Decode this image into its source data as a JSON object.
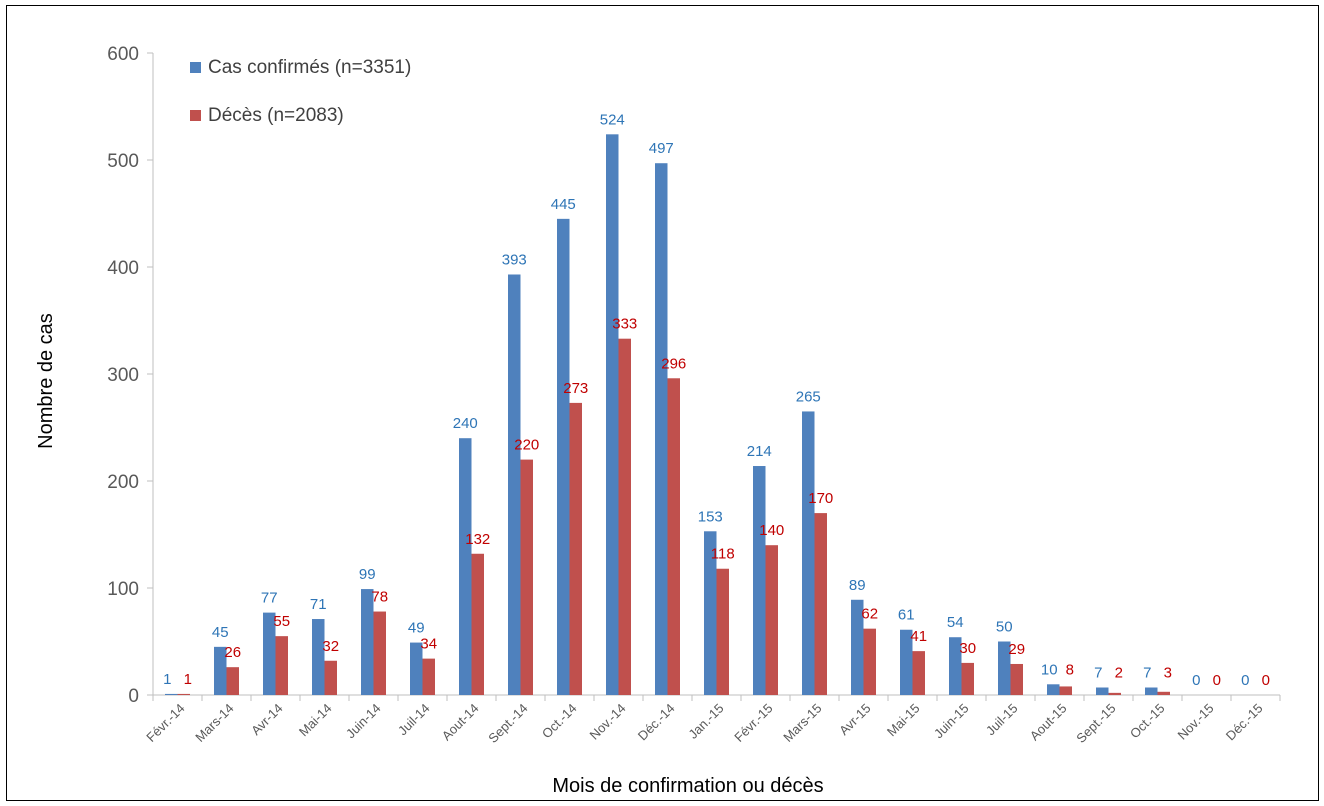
{
  "chart_data": {
    "type": "bar",
    "xlabel": "Mois de confirmation ou décès",
    "ylabel": "Nombre de cas",
    "ylim": [
      0,
      600
    ],
    "yticks": [
      "0",
      "100",
      "200",
      "300",
      "400",
      "500",
      "600"
    ],
    "grid": false,
    "legend_position": "top-left",
    "categories": [
      "Févr.-14",
      "Mars-14",
      "Avr-14",
      "Mai-14",
      "Juin-14",
      "Juil-14",
      "Aout-14",
      "Sept.-14",
      "Oct.-14",
      "Nov.-14",
      "Déc.-14",
      "Jan.-15",
      "Févr.-15",
      "Mars-15",
      "Avr-15",
      "Mai-15",
      "Juin-15",
      "Juil-15",
      "Aout-15",
      "Sept.-15",
      "Oct.-15",
      "Nov.-15",
      "Déc.-15"
    ],
    "series": [
      {
        "name": "Cas confirmés (n=3351)",
        "color": "#4f81bd",
        "label_color": "#2e75b6",
        "values": [
          1,
          45,
          77,
          71,
          99,
          49,
          240,
          393,
          445,
          524,
          497,
          153,
          214,
          265,
          89,
          61,
          54,
          50,
          10,
          7,
          7,
          0,
          0
        ]
      },
      {
        "name": "Décès (n=2083)",
        "color": "#c0504d",
        "label_color": "#c00000",
        "values": [
          1,
          26,
          55,
          32,
          78,
          34,
          132,
          220,
          273,
          333,
          296,
          118,
          140,
          170,
          62,
          41,
          30,
          29,
          8,
          2,
          3,
          0,
          0
        ]
      }
    ]
  }
}
